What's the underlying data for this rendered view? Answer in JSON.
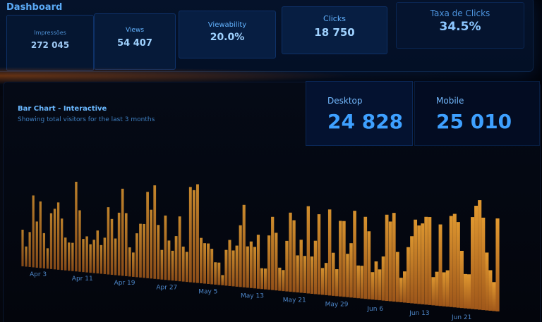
{
  "header": {
    "title": "Dashboard"
  },
  "kpis": [
    {
      "label": "Impressões",
      "value": "272 045"
    },
    {
      "label": "Views",
      "value": "54 407"
    },
    {
      "label": "Viewability",
      "value": "20.0%"
    },
    {
      "label": "Clicks",
      "value": "18 750"
    },
    {
      "label": "Taxa de Clicks",
      "value": "34.5%"
    }
  ],
  "chart_card": {
    "title": "Bar Chart - Interactive",
    "subtitle": "Showing total visitors for the last 3 months",
    "desktop": {
      "label": "Desktop",
      "value": "24 828"
    },
    "mobile": {
      "label": "Mobile",
      "value": "25 010"
    }
  },
  "colors": {
    "accent": "#3ea0ff",
    "bar": "#e0952a",
    "bar_dark": "#9a4a10"
  },
  "chart_data": {
    "type": "bar",
    "xlabel": "",
    "ylabel": "",
    "ticks": [
      "Apr 3",
      "Apr 11",
      "Apr 19",
      "Apr 27",
      "May 5",
      "May 13",
      "May 21",
      "May 29",
      "Jun 6",
      "Jun 13",
      "Jun 21"
    ],
    "values": [
      40,
      22,
      38,
      78,
      50,
      72,
      38,
      22,
      60,
      65,
      72,
      55,
      35,
      30,
      30,
      95,
      65,
      35,
      38,
      30,
      35,
      45,
      30,
      38,
      70,
      58,
      38,
      65,
      90,
      65,
      30,
      25,
      45,
      55,
      55,
      88,
      70,
      95,
      55,
      30,
      65,
      40,
      30,
      45,
      65,
      35,
      30,
      95,
      92,
      98,
      45,
      40,
      40,
      35,
      22,
      22,
      10,
      35,
      45,
      35,
      40,
      60,
      80,
      40,
      45,
      40,
      52,
      20,
      20,
      52,
      70,
      55,
      22,
      20,
      48,
      75,
      68,
      35,
      50,
      35,
      82,
      35,
      50,
      75,
      25,
      30,
      80,
      40,
      25,
      70,
      70,
      40,
      50,
      80,
      30,
      30,
      75,
      62,
      25,
      35,
      28,
      40,
      78,
      72,
      80,
      45,
      22,
      28,
      50,
      60,
      75,
      70,
      72,
      78,
      78,
      25,
      30,
      72,
      30,
      32,
      80,
      82,
      75,
      50,
      30,
      30,
      80,
      90,
      95,
      80,
      50,
      35,
      25,
      80
    ]
  }
}
